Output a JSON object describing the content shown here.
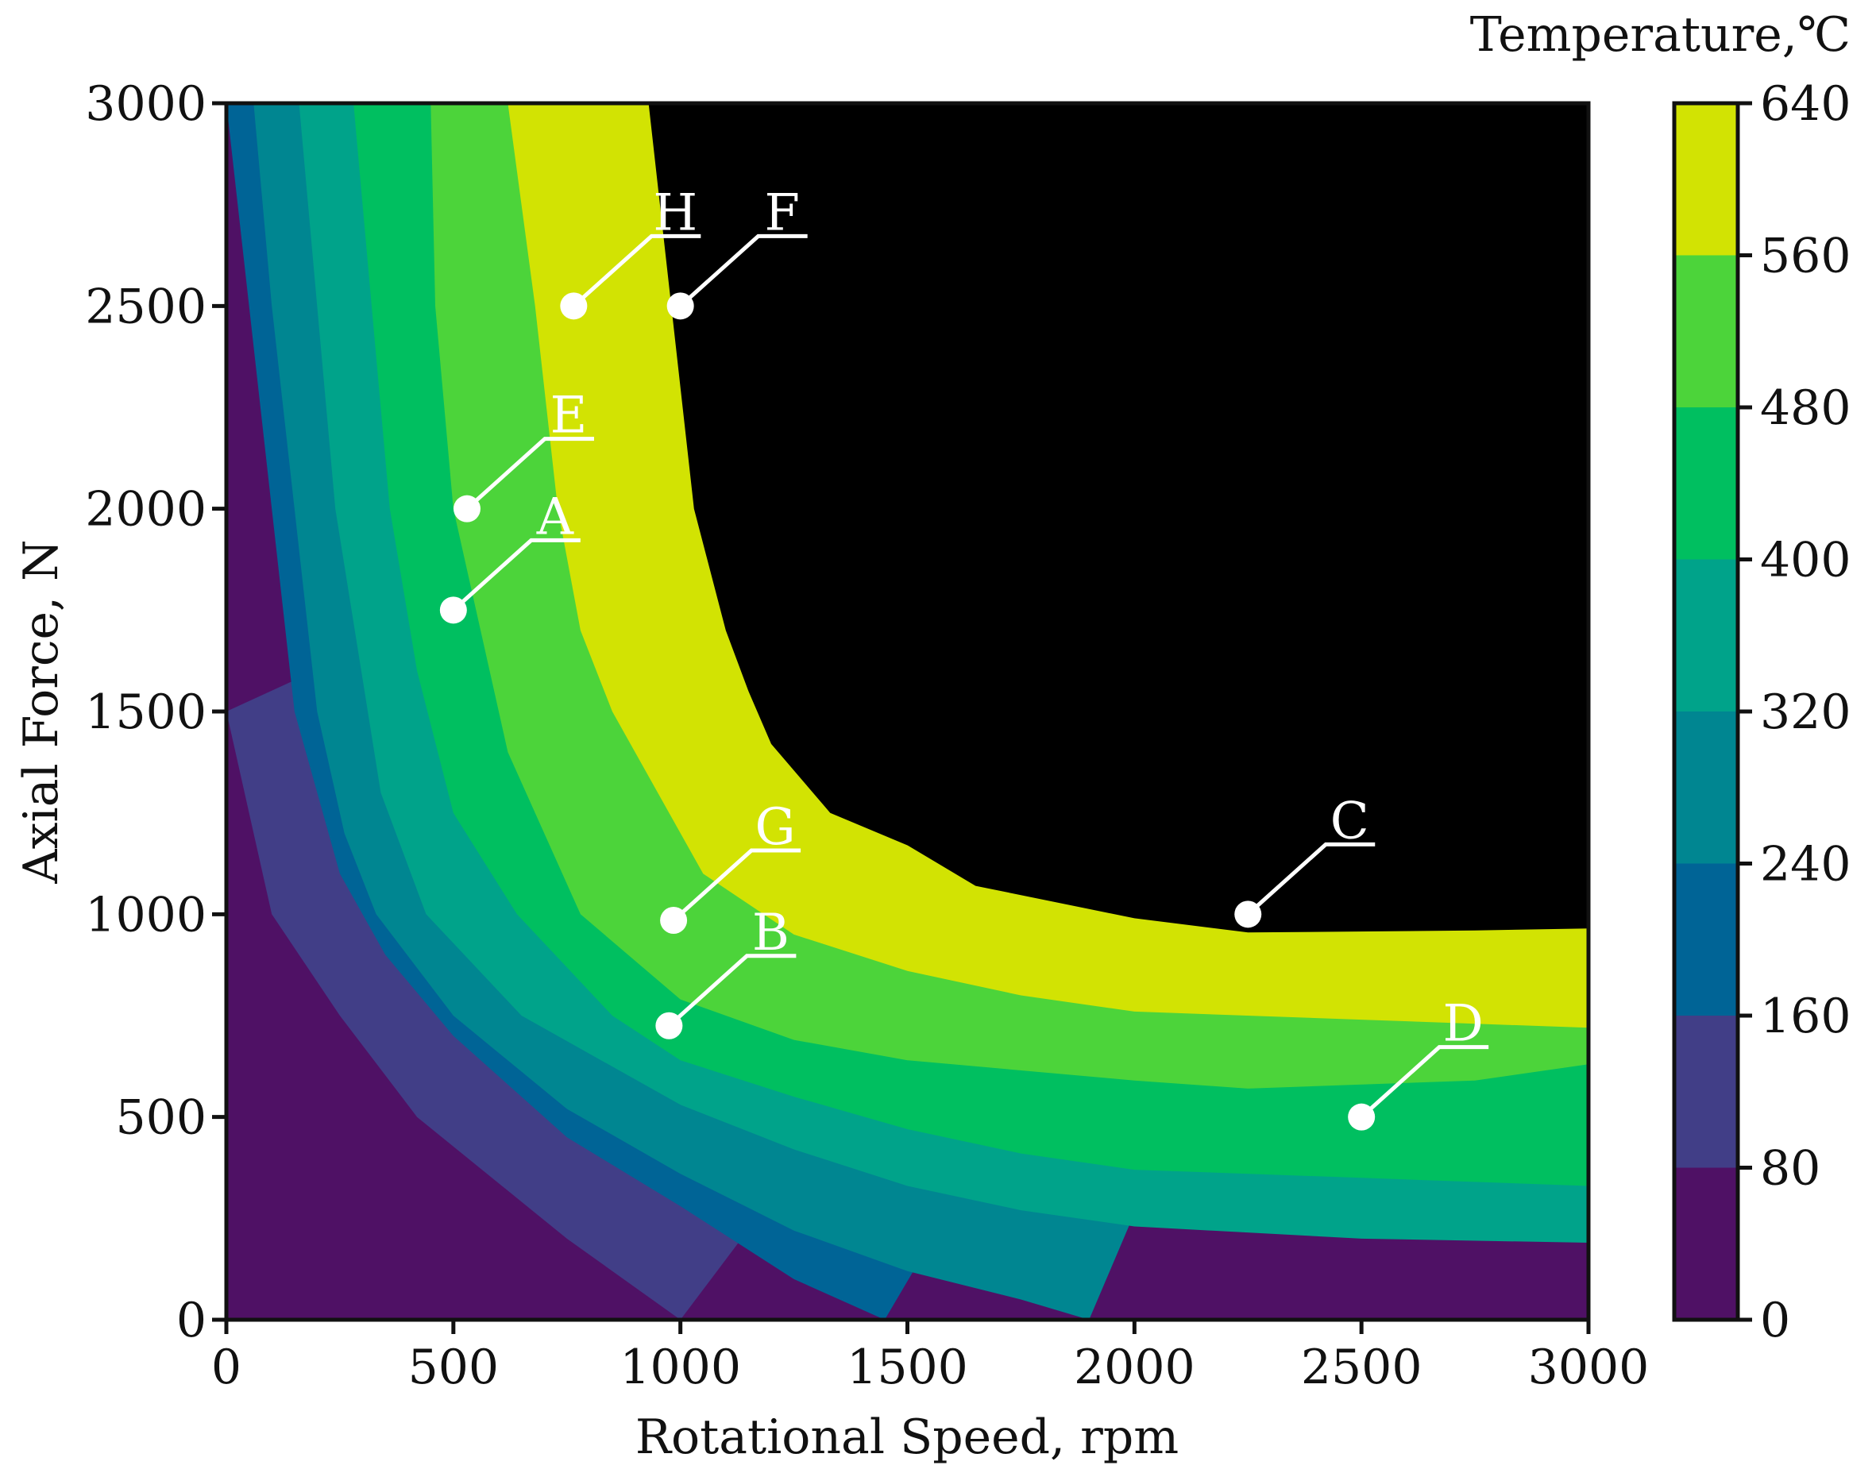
{
  "chart_data": {
    "type": "heatmap",
    "subtype": "filled-contour",
    "xlabel": "Rotational Speed, rpm",
    "ylabel": "Axial Force, N",
    "xlim": [
      0,
      3000
    ],
    "ylim": [
      0,
      3000
    ],
    "xticks": [
      0,
      500,
      1000,
      1500,
      2000,
      2500,
      3000
    ],
    "yticks": [
      0,
      500,
      1000,
      1500,
      2000,
      2500,
      3000
    ],
    "colorbar": {
      "title": "Temperature,℃",
      "ticks": [
        0,
        80,
        160,
        240,
        320,
        400,
        480,
        560,
        640
      ],
      "levels": [
        {
          "from": 0,
          "to": 80,
          "color": "#4f1165"
        },
        {
          "from": 80,
          "to": 160,
          "color": "#413e87"
        },
        {
          "from": 160,
          "to": 240,
          "color": "#006496"
        },
        {
          "from": 240,
          "to": 320,
          "color": "#008691"
        },
        {
          "from": 320,
          "to": 400,
          "color": "#00a38a"
        },
        {
          "from": 400,
          "to": 480,
          "color": "#00bf60"
        },
        {
          "from": 480,
          "to": 560,
          "color": "#4cd43a"
        },
        {
          "from": 560,
          "to": 640,
          "color": "#d2e303"
        }
      ]
    },
    "contour_boundaries": [
      {
        "level": 80,
        "points": [
          [
            0,
            1500
          ],
          [
            50,
            1250
          ],
          [
            100,
            1000
          ],
          [
            250,
            750
          ],
          [
            420,
            500
          ],
          [
            750,
            200
          ],
          [
            1000,
            0
          ]
        ]
      },
      {
        "level": 160,
        "points": [
          [
            0,
            3000
          ],
          [
            50,
            2500
          ],
          [
            100,
            2000
          ],
          [
            150,
            1500
          ],
          [
            250,
            1100
          ],
          [
            350,
            900
          ],
          [
            500,
            700
          ],
          [
            750,
            450
          ],
          [
            1000,
            280
          ],
          [
            1250,
            100
          ],
          [
            1450,
            0
          ]
        ]
      },
      {
        "level": 240,
        "points": [
          [
            60,
            3000
          ],
          [
            100,
            2500
          ],
          [
            150,
            2000
          ],
          [
            200,
            1500
          ],
          [
            260,
            1200
          ],
          [
            330,
            1000
          ],
          [
            500,
            750
          ],
          [
            750,
            520
          ],
          [
            1000,
            360
          ],
          [
            1250,
            220
          ],
          [
            1500,
            120
          ],
          [
            1750,
            50
          ],
          [
            1900,
            0
          ]
        ]
      },
      {
        "level": 320,
        "points": [
          [
            160,
            3000
          ],
          [
            200,
            2500
          ],
          [
            240,
            2000
          ],
          [
            290,
            1650
          ],
          [
            340,
            1300
          ],
          [
            440,
            1000
          ],
          [
            650,
            750
          ],
          [
            1000,
            530
          ],
          [
            1250,
            420
          ],
          [
            1500,
            330
          ],
          [
            1750,
            270
          ],
          [
            2000,
            230
          ],
          [
            2500,
            200
          ],
          [
            3000,
            190
          ]
        ]
      },
      {
        "level": 400,
        "points": [
          [
            280,
            3000
          ],
          [
            320,
            2500
          ],
          [
            360,
            2000
          ],
          [
            420,
            1600
          ],
          [
            500,
            1250
          ],
          [
            640,
            1000
          ],
          [
            850,
            750
          ],
          [
            1000,
            640
          ],
          [
            1250,
            550
          ],
          [
            1500,
            470
          ],
          [
            1750,
            410
          ],
          [
            2000,
            370
          ],
          [
            2500,
            350
          ],
          [
            3000,
            330
          ]
        ]
      },
      {
        "level": 480,
        "points": [
          [
            450,
            3000
          ],
          [
            460,
            2500
          ],
          [
            500,
            2000
          ],
          [
            560,
            1700
          ],
          [
            620,
            1400
          ],
          [
            780,
            1000
          ],
          [
            1000,
            790
          ],
          [
            1250,
            690
          ],
          [
            1500,
            640
          ],
          [
            2000,
            590
          ],
          [
            2250,
            570
          ],
          [
            2750,
            590
          ],
          [
            3000,
            630
          ]
        ]
      },
      {
        "level": 560,
        "points": [
          [
            620,
            3000
          ],
          [
            680,
            2500
          ],
          [
            730,
            2000
          ],
          [
            780,
            1700
          ],
          [
            850,
            1500
          ],
          [
            1050,
            1100
          ],
          [
            1250,
            950
          ],
          [
            1500,
            860
          ],
          [
            1750,
            800
          ],
          [
            2000,
            760
          ],
          [
            2500,
            740
          ],
          [
            3000,
            720
          ]
        ]
      },
      {
        "level": 640,
        "points": [
          [
            930,
            3000
          ],
          [
            980,
            2500
          ],
          [
            1030,
            2000
          ],
          [
            1100,
            1700
          ],
          [
            1150,
            1550
          ],
          [
            1200,
            1420
          ],
          [
            1330,
            1250
          ],
          [
            1500,
            1170
          ],
          [
            1650,
            1070
          ],
          [
            2000,
            990
          ],
          [
            2250,
            955
          ],
          [
            2750,
            960
          ],
          [
            3000,
            965
          ]
        ]
      }
    ],
    "points": [
      {
        "label": "A",
        "x": 500,
        "y": 1750
      },
      {
        "label": "B",
        "x": 975,
        "y": 725
      },
      {
        "label": "C",
        "x": 2250,
        "y": 1000
      },
      {
        "label": "D",
        "x": 2500,
        "y": 500
      },
      {
        "label": "E",
        "x": 530,
        "y": 2000
      },
      {
        "label": "F",
        "x": 1000,
        "y": 2500
      },
      {
        "label": "G",
        "x": 985,
        "y": 985
      },
      {
        "label": "H",
        "x": 765,
        "y": 2500
      }
    ]
  }
}
